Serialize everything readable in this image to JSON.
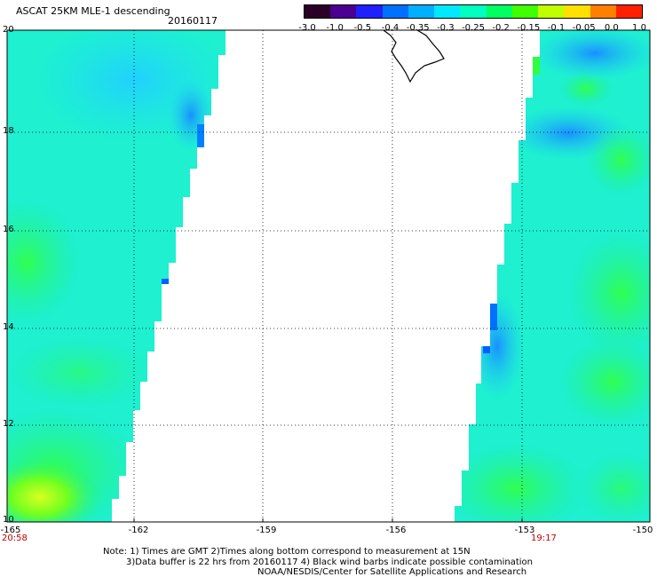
{
  "header": {
    "title": "ASCAT 25KM MLE-1 descending",
    "date": "20160117"
  },
  "colorbar": {
    "labels": [
      "-3.0",
      "-1.0",
      "-0.5",
      "-0.4",
      "-0.35",
      "-0.3",
      "-0.25",
      "-0.2",
      "-0.15",
      "-0.1",
      "-0.05",
      "0.0",
      "1.0"
    ],
    "colors": [
      "#2a0028",
      "#4a0090",
      "#2020ff",
      "#0070ff",
      "#00b0ff",
      "#00e8ff",
      "#00ffc0",
      "#00ff60",
      "#40ff00",
      "#c0ff00",
      "#ffe000",
      "#ff8000",
      "#ff2000"
    ]
  },
  "map": {
    "lat_labels": [
      "20",
      "18",
      "16",
      "14",
      "12",
      "10"
    ],
    "lon_labels": [
      "-165",
      "-162",
      "-159",
      "-156",
      "-153",
      "-150"
    ],
    "time_left": "20:58",
    "time_right": "19:17",
    "colors": {
      "swath_base": "#1ef0d0",
      "swath_blue": "#20c8f8",
      "swath_green": "#20f080",
      "swath_lime": "#90ff20",
      "land_outline": "#000000"
    }
  },
  "notes": {
    "line1": "Note: 1) Times are GMT 2)Times along bottom correspond to measurement at 15N",
    "line2": "3)Data buffer is 22 hrs from 20160117 4) Black wind barbs indicate possible contamination",
    "line3": "NOAA/NESDIS/Center for Satellite Applications and Research"
  }
}
